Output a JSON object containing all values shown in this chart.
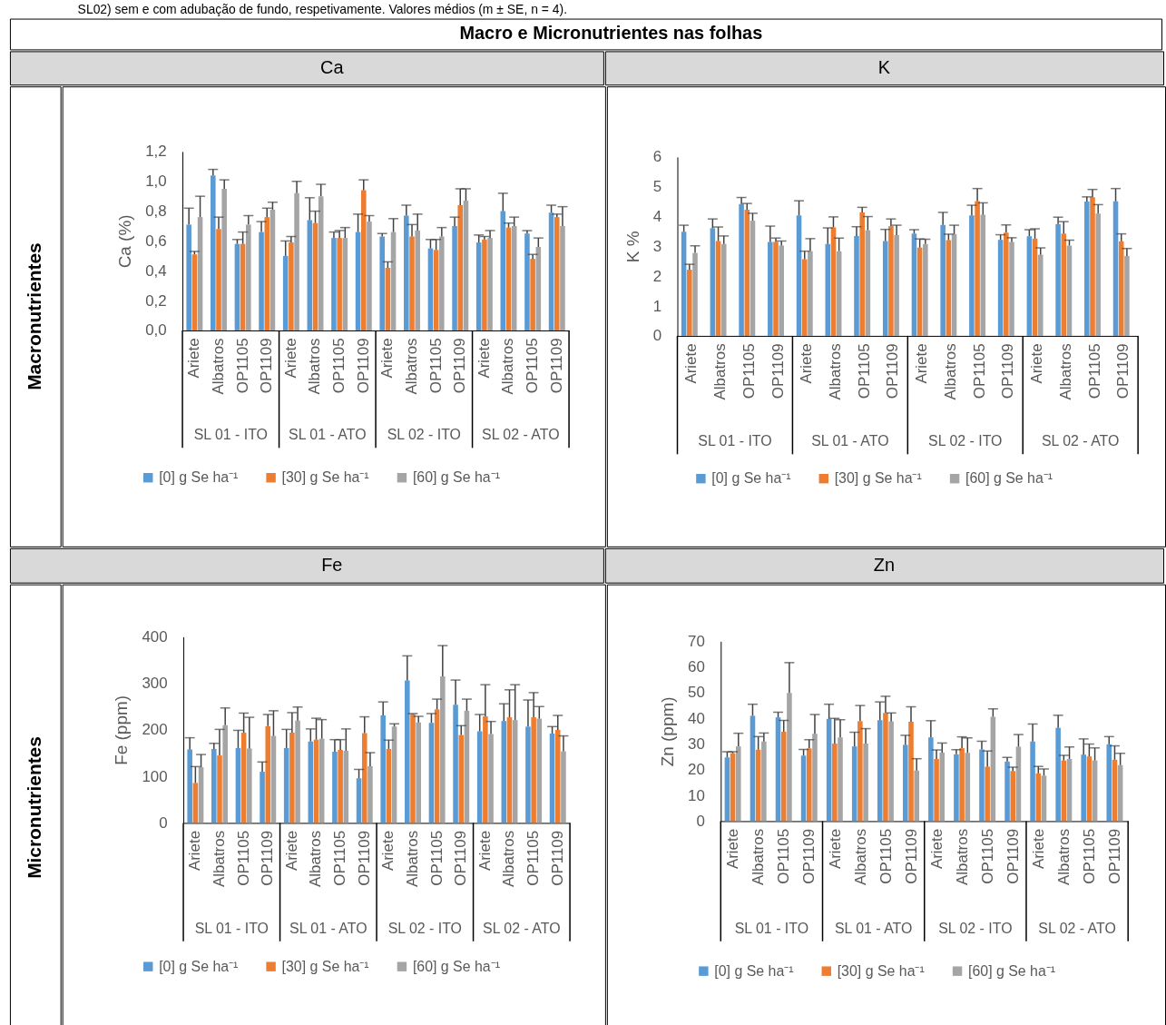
{
  "chart_data": [
    {
      "type": "other",
      "title": "Macro e Micronutrientes nas folhas",
      "annotations": [
        "SL02) sem e com adubação de fundo, respetivamente. Valores médios (m ± SE, n = 4).",
        "Macronutrientes",
        "Micronutrientes"
      ]
    },
    {
      "type": "bar",
      "title": "Ca",
      "ylabel": "Ca (%)",
      "categories": [
        "Ariete",
        "Albatros",
        "OP1105",
        "OP1109",
        "Ariete",
        "Albatros",
        "OP1105",
        "OP1109",
        "Ariete",
        "Albatros",
        "OP1105",
        "OP1109",
        "Ariete",
        "Albatros",
        "OP1105",
        "OP1109"
      ],
      "annotations": [
        "SL 01 - ITO",
        "SL 01 - ATO",
        "SL 02 - ITO",
        "SL 02 - ATO"
      ],
      "legend": "bottom",
      "ylim": [
        0,
        1.2
      ],
      "yticks": [
        {
          "value": 0,
          "label": "0,0"
        },
        {
          "value": 0.2,
          "label": "0,2"
        },
        {
          "value": 0.4,
          "label": "0,4"
        },
        {
          "value": 0.6,
          "label": "0,6"
        },
        {
          "value": 0.8,
          "label": "0,8"
        },
        {
          "value": 1.0,
          "label": "1,0"
        },
        {
          "value": 1.2,
          "label": "1,2"
        }
      ],
      "series": [
        {
          "name": "[0] g Se ha⁻¹",
          "color": "#5b9bd5",
          "values": [
            0.71,
            1.04,
            0.58,
            0.66,
            0.5,
            0.74,
            0.62,
            0.66,
            0.63,
            0.77,
            0.55,
            0.7,
            0.59,
            0.8,
            0.65,
            0.79
          ],
          "errors": [
            [
              0.71,
              0.82
            ],
            [
              1.04,
              1.08
            ],
            [
              0.58,
              0.61
            ],
            [
              0.66,
              0.73
            ],
            [
              0.5,
              0.6
            ],
            [
              0.74,
              0.89
            ],
            [
              0.62,
              0.66
            ],
            [
              0.66,
              0.78
            ],
            [
              0.63,
              0.65
            ],
            [
              0.77,
              0.84
            ],
            [
              0.55,
              0.61
            ],
            [
              0.7,
              0.76
            ],
            [
              0.59,
              0.64
            ],
            [
              0.8,
              0.92
            ],
            [
              0.65,
              0.67
            ],
            [
              0.79,
              0.84
            ]
          ]
        },
        {
          "name": "[30] g Se ha⁻¹",
          "color": "#ed7d31",
          "values": [
            0.51,
            0.68,
            0.58,
            0.76,
            0.59,
            0.72,
            0.62,
            0.94,
            0.42,
            0.63,
            0.54,
            0.84,
            0.61,
            0.69,
            0.48,
            0.76
          ],
          "errors": [
            [
              0.51,
              0.53
            ],
            [
              0.68,
              0.76
            ],
            [
              0.58,
              0.66
            ],
            [
              0.76,
              0.82
            ],
            [
              0.59,
              0.63
            ],
            [
              0.72,
              0.8
            ],
            [
              0.62,
              0.67
            ],
            [
              0.94,
              1.01
            ],
            [
              0.42,
              0.46
            ],
            [
              0.63,
              0.71
            ],
            [
              0.54,
              0.61
            ],
            [
              0.84,
              0.95
            ],
            [
              0.61,
              0.63
            ],
            [
              0.69,
              0.72
            ],
            [
              0.48,
              0.51
            ],
            [
              0.76,
              0.78
            ]
          ]
        },
        {
          "name": "[60] g Se ha⁻¹",
          "color": "#a5a5a5",
          "values": [
            0.76,
            0.95,
            0.71,
            0.81,
            0.92,
            0.9,
            0.62,
            0.73,
            0.66,
            0.67,
            0.63,
            0.87,
            0.62,
            0.7,
            0.56,
            0.7
          ],
          "errors": [
            [
              0.76,
              0.9
            ],
            [
              0.95,
              1.01
            ],
            [
              0.71,
              0.77
            ],
            [
              0.81,
              0.86
            ],
            [
              0.92,
              1.0
            ],
            [
              0.9,
              0.98
            ],
            [
              0.62,
              0.69
            ],
            [
              0.73,
              0.77
            ],
            [
              0.66,
              0.75
            ],
            [
              0.67,
              0.78
            ],
            [
              0.63,
              0.69
            ],
            [
              0.87,
              0.95
            ],
            [
              0.62,
              0.67
            ],
            [
              0.7,
              0.76
            ],
            [
              0.56,
              0.62
            ],
            [
              0.7,
              0.83
            ]
          ]
        }
      ]
    },
    {
      "type": "bar",
      "title": "K",
      "ylabel": "K %",
      "categories": [
        "Ariete",
        "Albatros",
        "OP1105",
        "OP1109",
        "Ariete",
        "Albatros",
        "OP1105",
        "OP1109",
        "Ariete",
        "Albatros",
        "OP1105",
        "OP1109",
        "Ariete",
        "Albatros",
        "OP1105",
        "OP1109"
      ],
      "annotations": [
        "SL 01 - ITO",
        "SL 01 - ATO",
        "SL 02 - ITO",
        "SL 02 - ATO"
      ],
      "legend": "bottom",
      "ylim": [
        0,
        6
      ],
      "yticks": [
        0,
        1,
        2,
        3,
        4,
        5,
        6
      ],
      "series": [
        {
          "name": "[0] g Se ha⁻¹",
          "color": "#5b9bd5",
          "values": [
            3.49,
            3.61,
            4.42,
            3.15,
            4.04,
            3.08,
            3.35,
            3.18,
            3.43,
            3.72,
            4.04,
            3.22,
            3.34,
            3.75,
            4.5,
            4.51
          ],
          "errors": [
            [
              3.49,
              3.71
            ],
            [
              3.61,
              3.92
            ],
            [
              4.42,
              4.64
            ],
            [
              3.15,
              3.68
            ],
            [
              4.04,
              4.53
            ],
            [
              3.08,
              3.62
            ],
            [
              3.35,
              3.66
            ],
            [
              3.18,
              3.57
            ],
            [
              3.43,
              3.56
            ],
            [
              3.72,
              4.14
            ],
            [
              4.04,
              4.38
            ],
            [
              3.22,
              3.39
            ],
            [
              3.34,
              3.56
            ],
            [
              3.75,
              3.98
            ],
            [
              4.5,
              4.66
            ],
            [
              4.51,
              4.94
            ]
          ]
        },
        {
          "name": "[30] g Se ha⁻¹",
          "color": "#ed7d31",
          "values": [
            2.22,
            3.18,
            4.23,
            3.15,
            2.57,
            3.64,
            4.14,
            3.68,
            2.96,
            3.21,
            4.52,
            3.46,
            3.26,
            3.43,
            4.65,
            3.17
          ],
          "errors": [
            [
              2.22,
              2.4
            ],
            [
              3.18,
              3.65
            ],
            [
              4.23,
              4.44
            ],
            [
              3.15,
              3.28
            ],
            [
              2.57,
              2.84
            ],
            [
              3.64,
              3.99
            ],
            [
              4.14,
              4.31
            ],
            [
              3.68,
              3.92
            ],
            [
              2.96,
              3.25
            ],
            [
              3.21,
              3.41
            ],
            [
              4.52,
              4.94
            ],
            [
              3.46,
              3.72
            ],
            [
              3.26,
              3.59
            ],
            [
              3.43,
              3.83
            ],
            [
              4.65,
              4.91
            ],
            [
              3.17,
              3.42
            ]
          ]
        },
        {
          "name": "[60] g Se ha⁻¹",
          "color": "#a5a5a5",
          "values": [
            2.78,
            3.08,
            3.86,
            3.03,
            2.84,
            2.84,
            3.54,
            3.38,
            3.08,
            3.41,
            4.06,
            3.15,
            2.72,
            3.03,
            4.1,
            2.68
          ],
          "errors": [
            [
              2.78,
              3.02
            ],
            [
              3.08,
              3.35
            ],
            [
              3.86,
              4.11
            ],
            [
              3.03,
              3.18
            ],
            [
              2.84,
              3.26
            ],
            [
              2.84,
              3.28
            ],
            [
              3.54,
              4.0
            ],
            [
              3.38,
              3.71
            ],
            [
              3.08,
              3.24
            ],
            [
              3.41,
              3.71
            ],
            [
              4.06,
              4.46
            ],
            [
              3.15,
              3.29
            ],
            [
              2.72,
              2.95
            ],
            [
              3.03,
              3.21
            ],
            [
              4.1,
              4.4
            ],
            [
              2.68,
              2.93
            ]
          ]
        }
      ]
    },
    {
      "type": "bar",
      "title": "Fe",
      "ylabel": "Fe (ppm)",
      "categories": [
        "Ariete",
        "Albatros",
        "OP1105",
        "OP1109",
        "Ariete",
        "Albatros",
        "OP1105",
        "OP1109",
        "Ariete",
        "Albatros",
        "OP1105",
        "OP1109",
        "Ariete",
        "Albatros",
        "OP1105",
        "OP1109"
      ],
      "annotations": [
        "SL 01 - ITO",
        "SL 01 - ATO",
        "SL 02 - ITO",
        "SL 02 - ATO"
      ],
      "legend": "bottom",
      "ylim": [
        0,
        400
      ],
      "yticks": [
        0,
        100,
        200,
        300,
        400
      ],
      "series": [
        {
          "name": "[0] g Se ha⁻¹",
          "color": "#5b9bd5",
          "values": [
            158,
            159,
            161,
            110,
            161,
            175,
            153,
            96,
            231,
            306,
            215,
            254,
            197,
            219,
            207,
            192
          ],
          "errors": [
            [
              158,
              183
            ],
            [
              159,
              171
            ],
            [
              161,
              199
            ],
            [
              110,
              131
            ],
            [
              161,
              201
            ],
            [
              175,
              202
            ],
            [
              153,
              179
            ],
            [
              96,
              115
            ],
            [
              231,
              260
            ],
            [
              306,
              359
            ],
            [
              215,
              235
            ],
            [
              254,
              307
            ],
            [
              197,
              233
            ],
            [
              219,
              256
            ],
            [
              207,
              264
            ],
            [
              192,
              207
            ]
          ]
        },
        {
          "name": "[30] g Se ha⁻¹",
          "color": "#ed7d31",
          "values": [
            86,
            145,
            194,
            208,
            194,
            179,
            157,
            193,
            159,
            234,
            244,
            189,
            229,
            227,
            227,
            200
          ],
          "errors": [
            [
              86,
              121
            ],
            [
              145,
              201
            ],
            [
              194,
              236
            ],
            [
              208,
              233
            ],
            [
              194,
              237
            ],
            [
              179,
              225
            ],
            [
              157,
              179
            ],
            [
              193,
              228
            ],
            [
              159,
              178
            ],
            [
              234,
              235
            ],
            [
              244,
              266
            ],
            [
              189,
              209
            ],
            [
              229,
              297
            ],
            [
              227,
              286
            ],
            [
              227,
              280
            ],
            [
              200,
              231
            ]
          ]
        },
        {
          "name": "[60] g Se ha⁻¹",
          "color": "#a5a5a5",
          "values": [
            120,
            210,
            160,
            187,
            220,
            181,
            155,
            122,
            207,
            216,
            315,
            241,
            191,
            221,
            224,
            154
          ],
          "errors": [
            [
              120,
              147
            ],
            [
              210,
              247
            ],
            [
              160,
              227
            ],
            [
              187,
              241
            ],
            [
              220,
              249
            ],
            [
              181,
              222
            ],
            [
              155,
              202
            ],
            [
              122,
              151
            ],
            [
              207,
              213
            ],
            [
              216,
              229
            ],
            [
              315,
              381
            ],
            [
              241,
              266
            ],
            [
              191,
              218
            ],
            [
              221,
              297
            ],
            [
              224,
              250
            ],
            [
              154,
              187
            ]
          ]
        }
      ]
    },
    {
      "type": "bar",
      "title": "Zn",
      "ylabel": "Zn (ppm)",
      "categories": [
        "Ariete",
        "Albatros",
        "OP1105",
        "OP1109",
        "Ariete",
        "Albatros",
        "OP1105",
        "OP1109",
        "Ariete",
        "Albatros",
        "OP1105",
        "OP1109",
        "Ariete",
        "Albatros",
        "OP1105",
        "OP1109"
      ],
      "annotations": [
        "SL 01 - ITO",
        "SL 01 - ATO",
        "SL 02 - ITO",
        "SL 02 - ATO"
      ],
      "legend": "bottom",
      "ylim": [
        0,
        70
      ],
      "yticks": [
        0,
        10,
        20,
        30,
        40,
        50,
        60,
        70
      ],
      "series": [
        {
          "name": "[0] g Se ha⁻¹",
          "color": "#5b9bd5",
          "values": [
            24.8,
            41.0,
            40.4,
            25.5,
            39.8,
            29.1,
            39.3,
            29.7,
            32.6,
            26.0,
            27.9,
            23.2,
            31.0,
            36.3,
            25.9,
            29.9
          ],
          "errors": [
            [
              24.8,
              27.0
            ],
            [
              41.0,
              45.5
            ],
            [
              40.4,
              42.4
            ],
            [
              25.5,
              27.9
            ],
            [
              39.8,
              45.5
            ],
            [
              29.1,
              34.6
            ],
            [
              39.3,
              46.4
            ],
            [
              29.7,
              33.4
            ],
            [
              32.6,
              39.1
            ],
            [
              26.0,
              27.8
            ],
            [
              27.9,
              31.1
            ],
            [
              23.2,
              24.8
            ],
            [
              31.0,
              37.8
            ],
            [
              36.3,
              41.2
            ],
            [
              25.9,
              32.0
            ],
            [
              29.9,
              32.9
            ]
          ]
        },
        {
          "name": "[30] g Se ha⁻¹",
          "color": "#ed7d31",
          "values": [
            26.4,
            27.8,
            34.8,
            28.3,
            30.2,
            38.9,
            42.1,
            38.7,
            24.2,
            28.4,
            21.2,
            19.5,
            18.6,
            23.6,
            25.2,
            23.9
          ],
          "errors": [
            [
              26.4,
              27.0
            ],
            [
              27.8,
              32.9
            ],
            [
              34.8,
              39.2
            ],
            [
              28.3,
              31.7
            ],
            [
              30.2,
              40.0
            ],
            [
              38.9,
              45.0
            ],
            [
              42.1,
              48.6
            ],
            [
              38.7,
              44.5
            ],
            [
              24.2,
              27.7
            ],
            [
              28.4,
              32.8
            ],
            [
              21.2,
              27.3
            ],
            [
              19.5,
              21.0
            ],
            [
              18.6,
              21.3
            ],
            [
              23.6,
              25.6
            ],
            [
              25.2,
              30.0
            ],
            [
              23.9,
              29.3
            ]
          ]
        },
        {
          "name": "[60] g Se ha⁻¹",
          "color": "#a5a5a5",
          "values": [
            29.1,
            31.0,
            49.9,
            34.0,
            32.6,
            30.2,
            38.8,
            19.7,
            26.7,
            26.6,
            40.6,
            29.0,
            17.7,
            24.2,
            23.6,
            21.8
          ],
          "errors": [
            [
              29.1,
              34.2
            ],
            [
              31.0,
              34.3
            ],
            [
              49.9,
              61.7
            ],
            [
              34.0,
              41.5
            ],
            [
              32.6,
              39.5
            ],
            [
              30.2,
              36.0
            ],
            [
              38.8,
              42.1
            ],
            [
              19.7,
              24.3
            ],
            [
              26.7,
              30.4
            ],
            [
              26.6,
              32.4
            ],
            [
              40.6,
              43.7
            ],
            [
              29.0,
              33.7
            ],
            [
              17.7,
              20.3
            ],
            [
              24.2,
              28.9
            ],
            [
              23.6,
              28.5
            ],
            [
              21.8,
              26.4
            ]
          ]
        }
      ]
    }
  ]
}
